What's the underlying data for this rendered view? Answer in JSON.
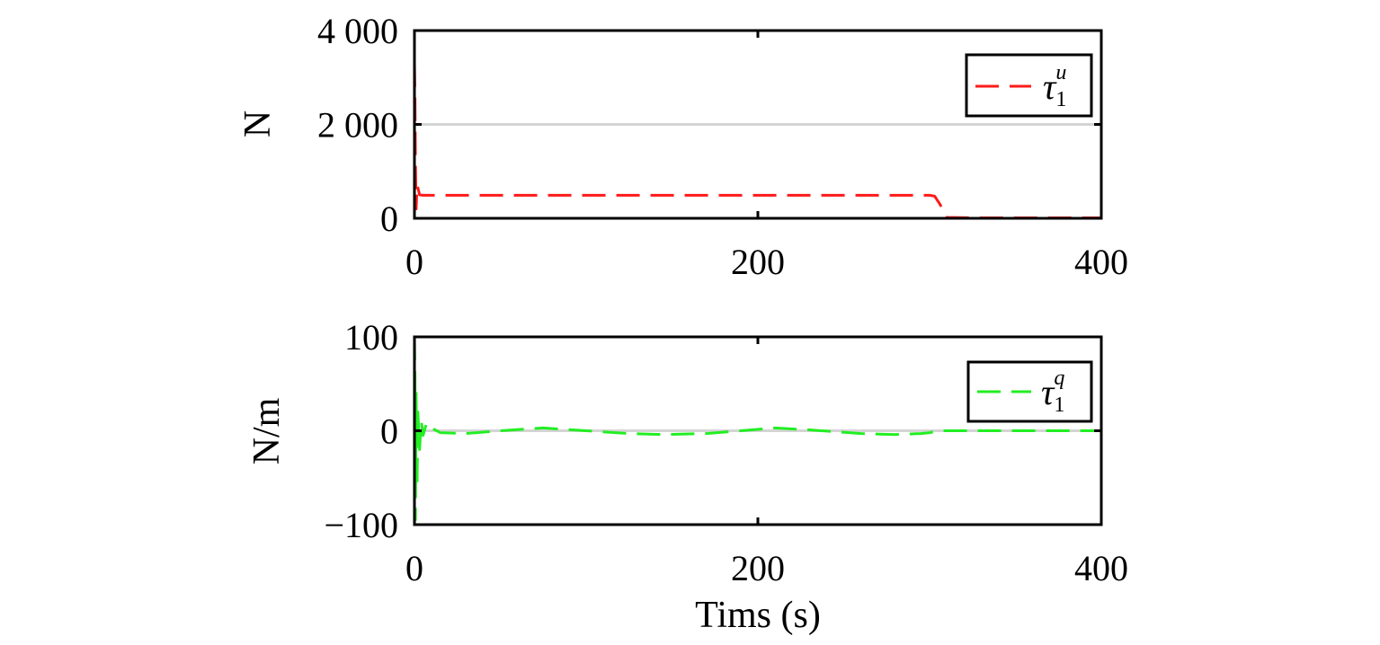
{
  "chart_data": [
    {
      "type": "line",
      "ylabel": "N",
      "xlabel": "",
      "xlim": [
        0,
        400
      ],
      "ylim": [
        0,
        4000
      ],
      "xticks": [
        0,
        200,
        400
      ],
      "xtick_labels": [
        "0",
        "200",
        "400"
      ],
      "yticks": [
        0,
        2000,
        4000
      ],
      "ytick_labels": [
        "0",
        "2 000",
        "4 000"
      ],
      "grid": "horizontal",
      "legend_position": "top-right",
      "series": [
        {
          "name": "τ1u",
          "legend": {
            "base": "τ",
            "sub": "1",
            "sup": "u"
          },
          "color": "#ff1a1a",
          "line_style": "dashed",
          "x": [
            0,
            0.3,
            0.6,
            1.0,
            1.5,
            2,
            3,
            5,
            50,
            150,
            250,
            300,
            303,
            306,
            310,
            330,
            400
          ],
          "y": [
            3300,
            2600,
            1200,
            200,
            700,
            650,
            500,
            490,
            490,
            490,
            490,
            490,
            470,
            300,
            20,
            10,
            10
          ]
        }
      ]
    },
    {
      "type": "line",
      "ylabel": "N/m",
      "xlabel": "Tims (s)",
      "xlim": [
        0,
        400
      ],
      "ylim": [
        -100,
        100
      ],
      "xticks": [
        0,
        200,
        400
      ],
      "xtick_labels": [
        "0",
        "200",
        "400"
      ],
      "yticks": [
        -100,
        0,
        100
      ],
      "ytick_labels": [
        "−100",
        "0",
        "100"
      ],
      "grid": "horizontal",
      "legend_position": "top-right",
      "series": [
        {
          "name": "τ1q",
          "legend": {
            "base": "τ",
            "sub": "1",
            "sup": "q"
          },
          "color": "#22ee22",
          "line_style": "dashed",
          "x": [
            0,
            0.3,
            0.6,
            1.0,
            1.5,
            2,
            3,
            4,
            5,
            7,
            9,
            11,
            15,
            30,
            50,
            75,
            100,
            125,
            145,
            170,
            190,
            210,
            230,
            260,
            280,
            295,
            300,
            305,
            320,
            400
          ],
          "y": [
            100,
            60,
            -95,
            40,
            -60,
            20,
            -20,
            10,
            -5,
            8,
            6,
            2,
            -2,
            -3,
            0,
            3,
            0,
            -3,
            -4,
            -3,
            0,
            3,
            1,
            -3,
            -4,
            -3,
            -2,
            0,
            0,
            0
          ]
        }
      ]
    }
  ]
}
